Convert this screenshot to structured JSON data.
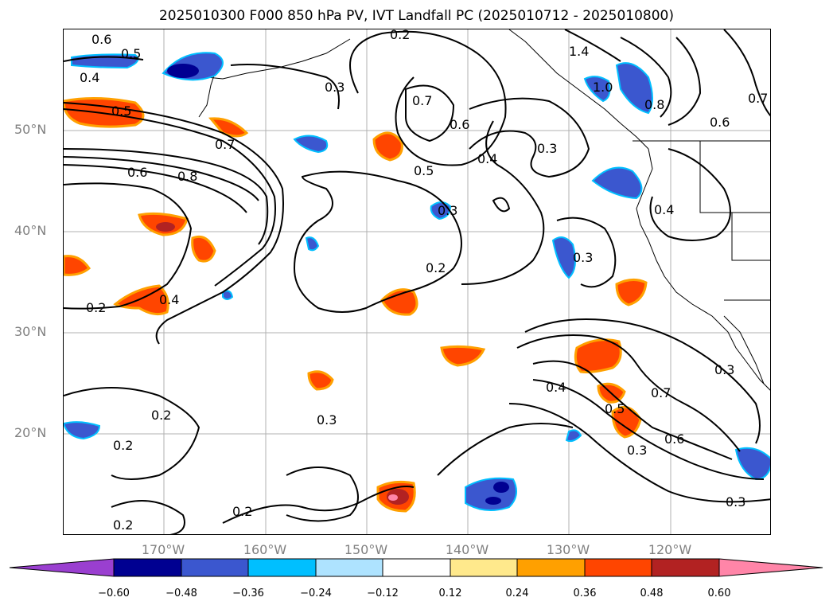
{
  "title": "2025010300 F000 850 hPa PV, IVT Landfall PC (2025010712 - 2025010800)",
  "lat_labels": [
    "50°N",
    "40°N",
    "30°N",
    "20°N"
  ],
  "lon_labels": [
    "170°W",
    "160°W",
    "150°W",
    "140°W",
    "130°W",
    "120°W"
  ],
  "colorbar": {
    "ticks": [
      "−0.60",
      "−0.48",
      "−0.36",
      "−0.24",
      "−0.12",
      "0.12",
      "0.24",
      "0.36",
      "0.48",
      "0.60"
    ],
    "colors": [
      "#9a3fd0",
      "#000091",
      "#3b57cf",
      "#00bfff",
      "#aee3ff",
      "#ffffff",
      "#ffe98c",
      "#ffa000",
      "#ff4500",
      "#b22222",
      "#ff85a8"
    ]
  },
  "contour_labels": [
    "0.6",
    "0.5",
    "0.4",
    "0.5",
    "0.7",
    "0.6",
    "0.8",
    "0.2",
    "0.4",
    "0.3",
    "0.7",
    "0.6",
    "0.5",
    "0.3",
    "0.2",
    "0.4",
    "1.4",
    "1.0",
    "0.8",
    "0.6",
    "0.7",
    "0.4",
    "0.3",
    "0.3",
    "0.4",
    "0.3",
    "0.7",
    "0.5",
    "0.6",
    "0.3",
    "0.3",
    "0.2",
    "0.2",
    "0.3",
    "0.2",
    "0.2",
    "0.2"
  ]
}
